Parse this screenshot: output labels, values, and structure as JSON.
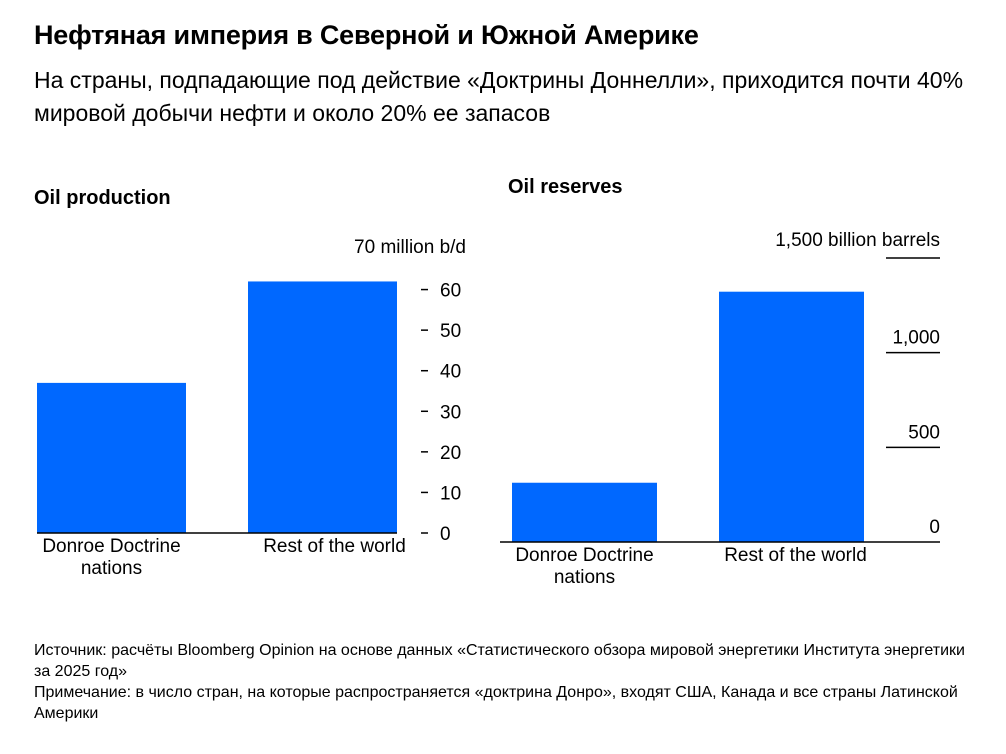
{
  "title": "Нефтяная империя в Северной и Южной Америке",
  "subtitle": "На страны, подпадающие под действие «Доктрины Доннелли», приходится почти 40% мировой добычи нефти и около 20% ее запасов",
  "footer": {
    "source": "Источник: расчёты Bloomberg Opinion на основе данных «Статистического обзора мировой энергетики Института энергетики за 2025 год»",
    "note": "Примечание: в число стран, на которые распространяется «доктрина Донро», входят США, Канада и все страны Латинской Америки"
  },
  "colors": {
    "bar": "#0068ff",
    "axis": "#000000"
  },
  "chart_data": [
    {
      "type": "bar",
      "title": "Oil production",
      "unit_label": "70 million b/d",
      "categories": [
        "Donroe Doctrine nations",
        "Rest of the world"
      ],
      "category_lines": [
        [
          "Donroe Doctrine",
          "nations"
        ],
        [
          "Rest of the world"
        ]
      ],
      "values": [
        37,
        62
      ],
      "ylim": [
        0,
        70
      ],
      "yticks": [
        0,
        10,
        20,
        30,
        40,
        50,
        60
      ],
      "ytick_labels": [
        "0",
        "10",
        "20",
        "30",
        "40",
        "50",
        "60"
      ]
    },
    {
      "type": "bar",
      "title": "Oil reserves",
      "unit_label": "1,500 billion barrels",
      "categories": [
        "Donroe Doctrine nations",
        "Rest of the world"
      ],
      "category_lines": [
        [
          "Donroe Doctrine",
          "nations"
        ],
        [
          "Rest of the world"
        ]
      ],
      "values": [
        313,
        1322
      ],
      "ylim": [
        0,
        1500
      ],
      "yticks": [
        0,
        500,
        1000
      ],
      "ytick_labels": [
        "0",
        "500",
        "1,000"
      ]
    }
  ]
}
